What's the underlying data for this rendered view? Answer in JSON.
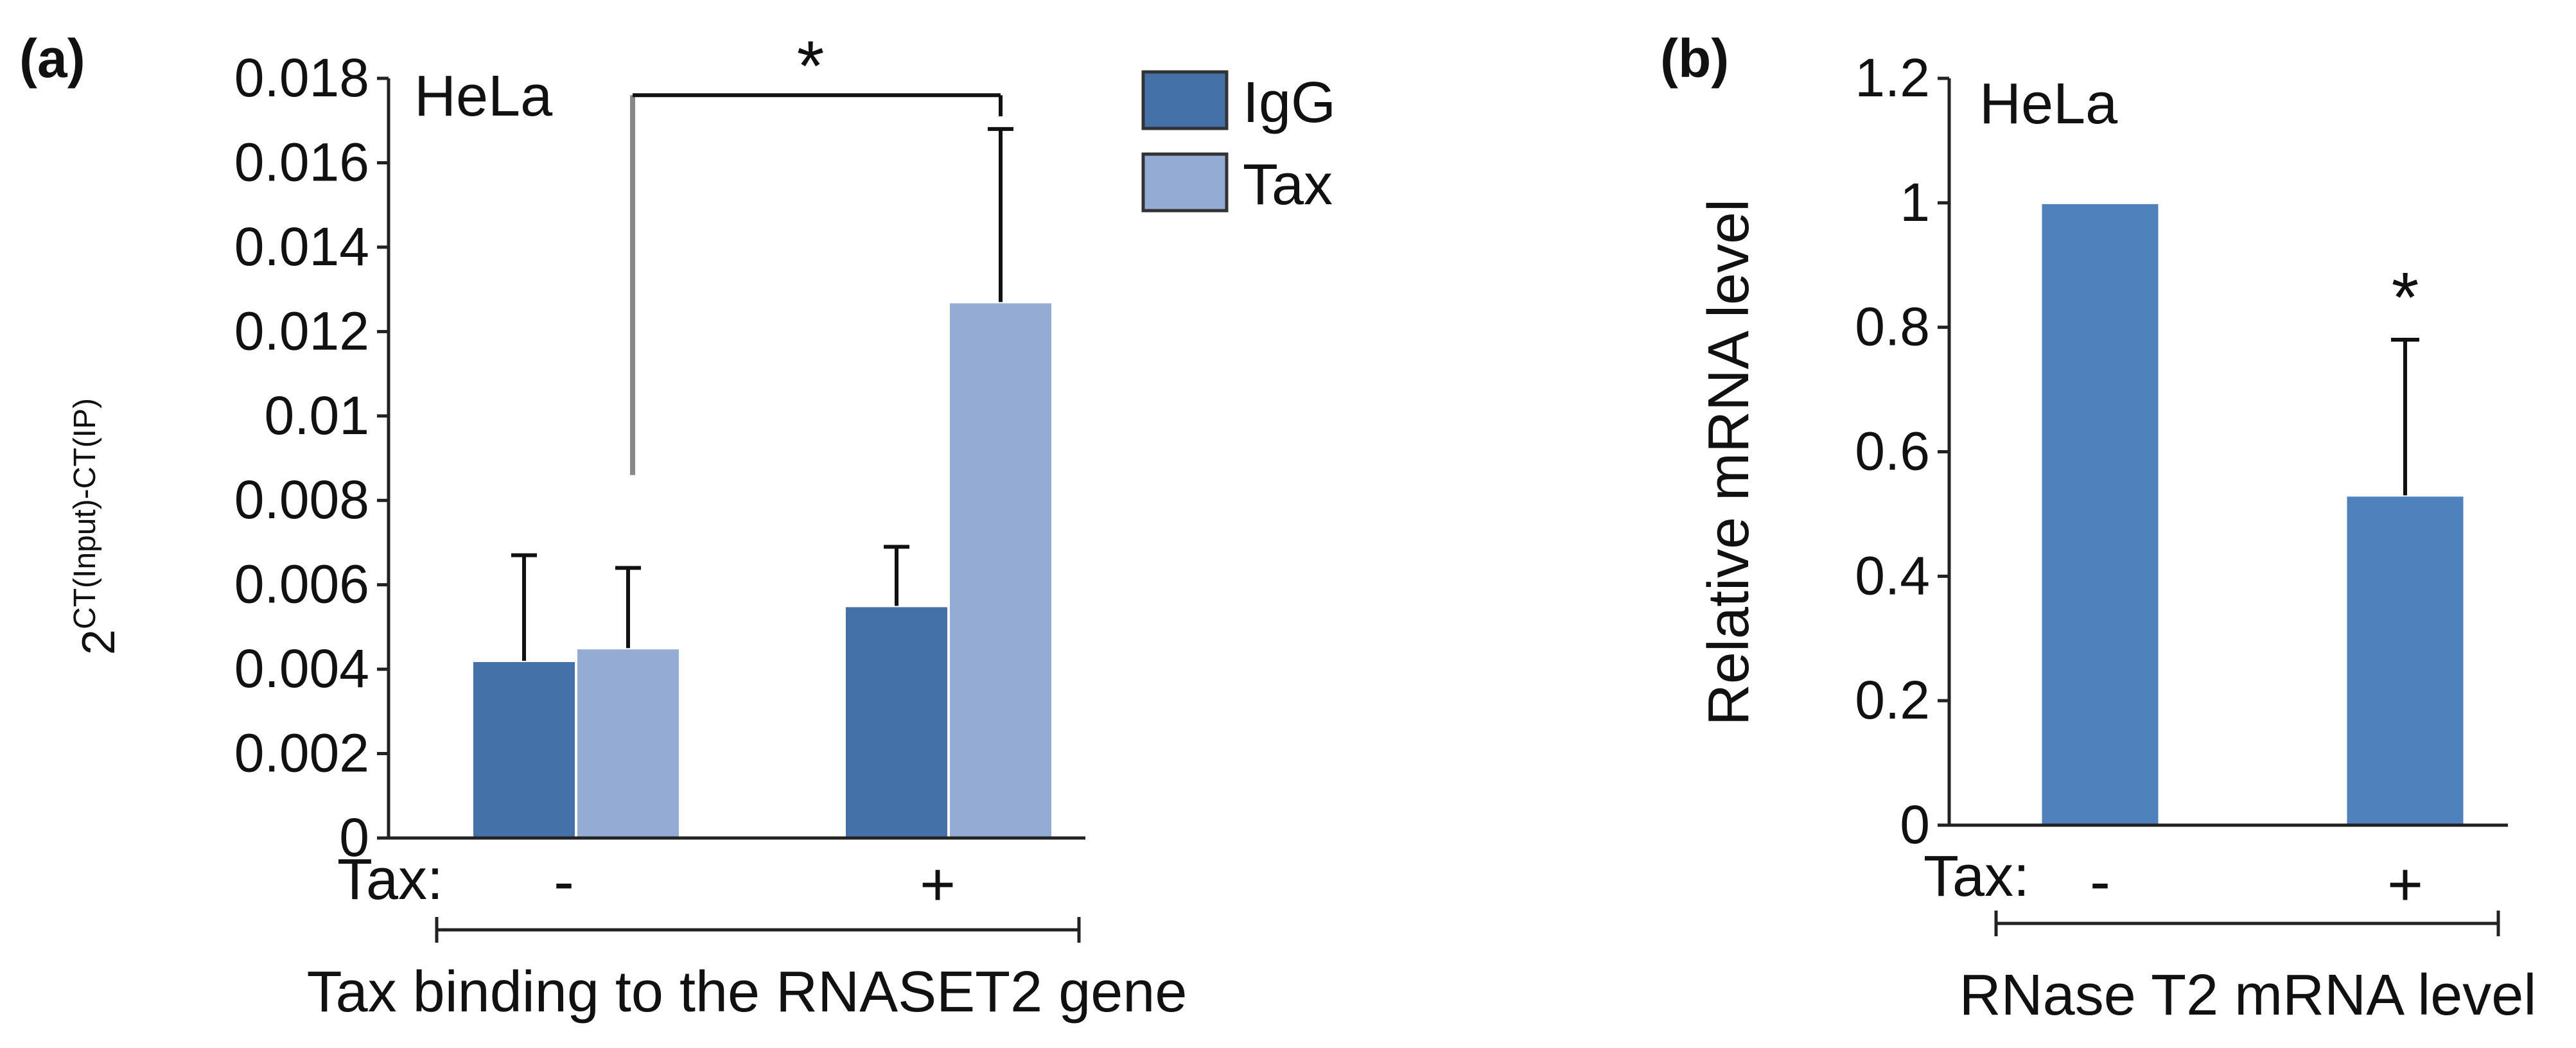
{
  "chart_data": [
    {
      "type": "bar",
      "panel_label": "(a)",
      "cell_label": "HeLa",
      "ylabel_main": "2",
      "ylabel_super": "CT(Input)-CT(IP)",
      "xlabel": "Tax binding to the RNASET2 gene",
      "group_axis_label": "Tax:",
      "categories": [
        "-",
        "+"
      ],
      "ylim": [
        0,
        0.018
      ],
      "yticks": [
        "0",
        "0.002",
        "0.004",
        "0.006",
        "0.008",
        "0.01",
        "0.012",
        "0.014",
        "0.016",
        "0.018"
      ],
      "series": [
        {
          "name": "IgG",
          "color": "#4472a8",
          "values": [
            0.0042,
            0.0055
          ],
          "errors": [
            0.0025,
            0.0014
          ]
        },
        {
          "name": "Tax",
          "color": "#94acd4",
          "values": [
            0.0045,
            0.0127
          ],
          "errors": [
            0.0019,
            0.0041
          ]
        }
      ],
      "significance": "*"
    },
    {
      "type": "bar",
      "panel_label": "(b)",
      "cell_label": "HeLa",
      "ylabel": "Relative mRNA level",
      "xlabel": "RNase T2 mRNA level",
      "group_axis_label": "Tax:",
      "categories": [
        "-",
        "+"
      ],
      "ylim": [
        0,
        1.2
      ],
      "yticks": [
        "0",
        "0.2",
        "0.4",
        "0.6",
        "0.8",
        "1",
        "1.2"
      ],
      "series": [
        {
          "name": "Relative mRNA level",
          "color": "#4f81bd",
          "values": [
            1.0,
            0.53
          ],
          "errors": [
            0,
            0.25
          ]
        }
      ],
      "significance": "*"
    }
  ]
}
